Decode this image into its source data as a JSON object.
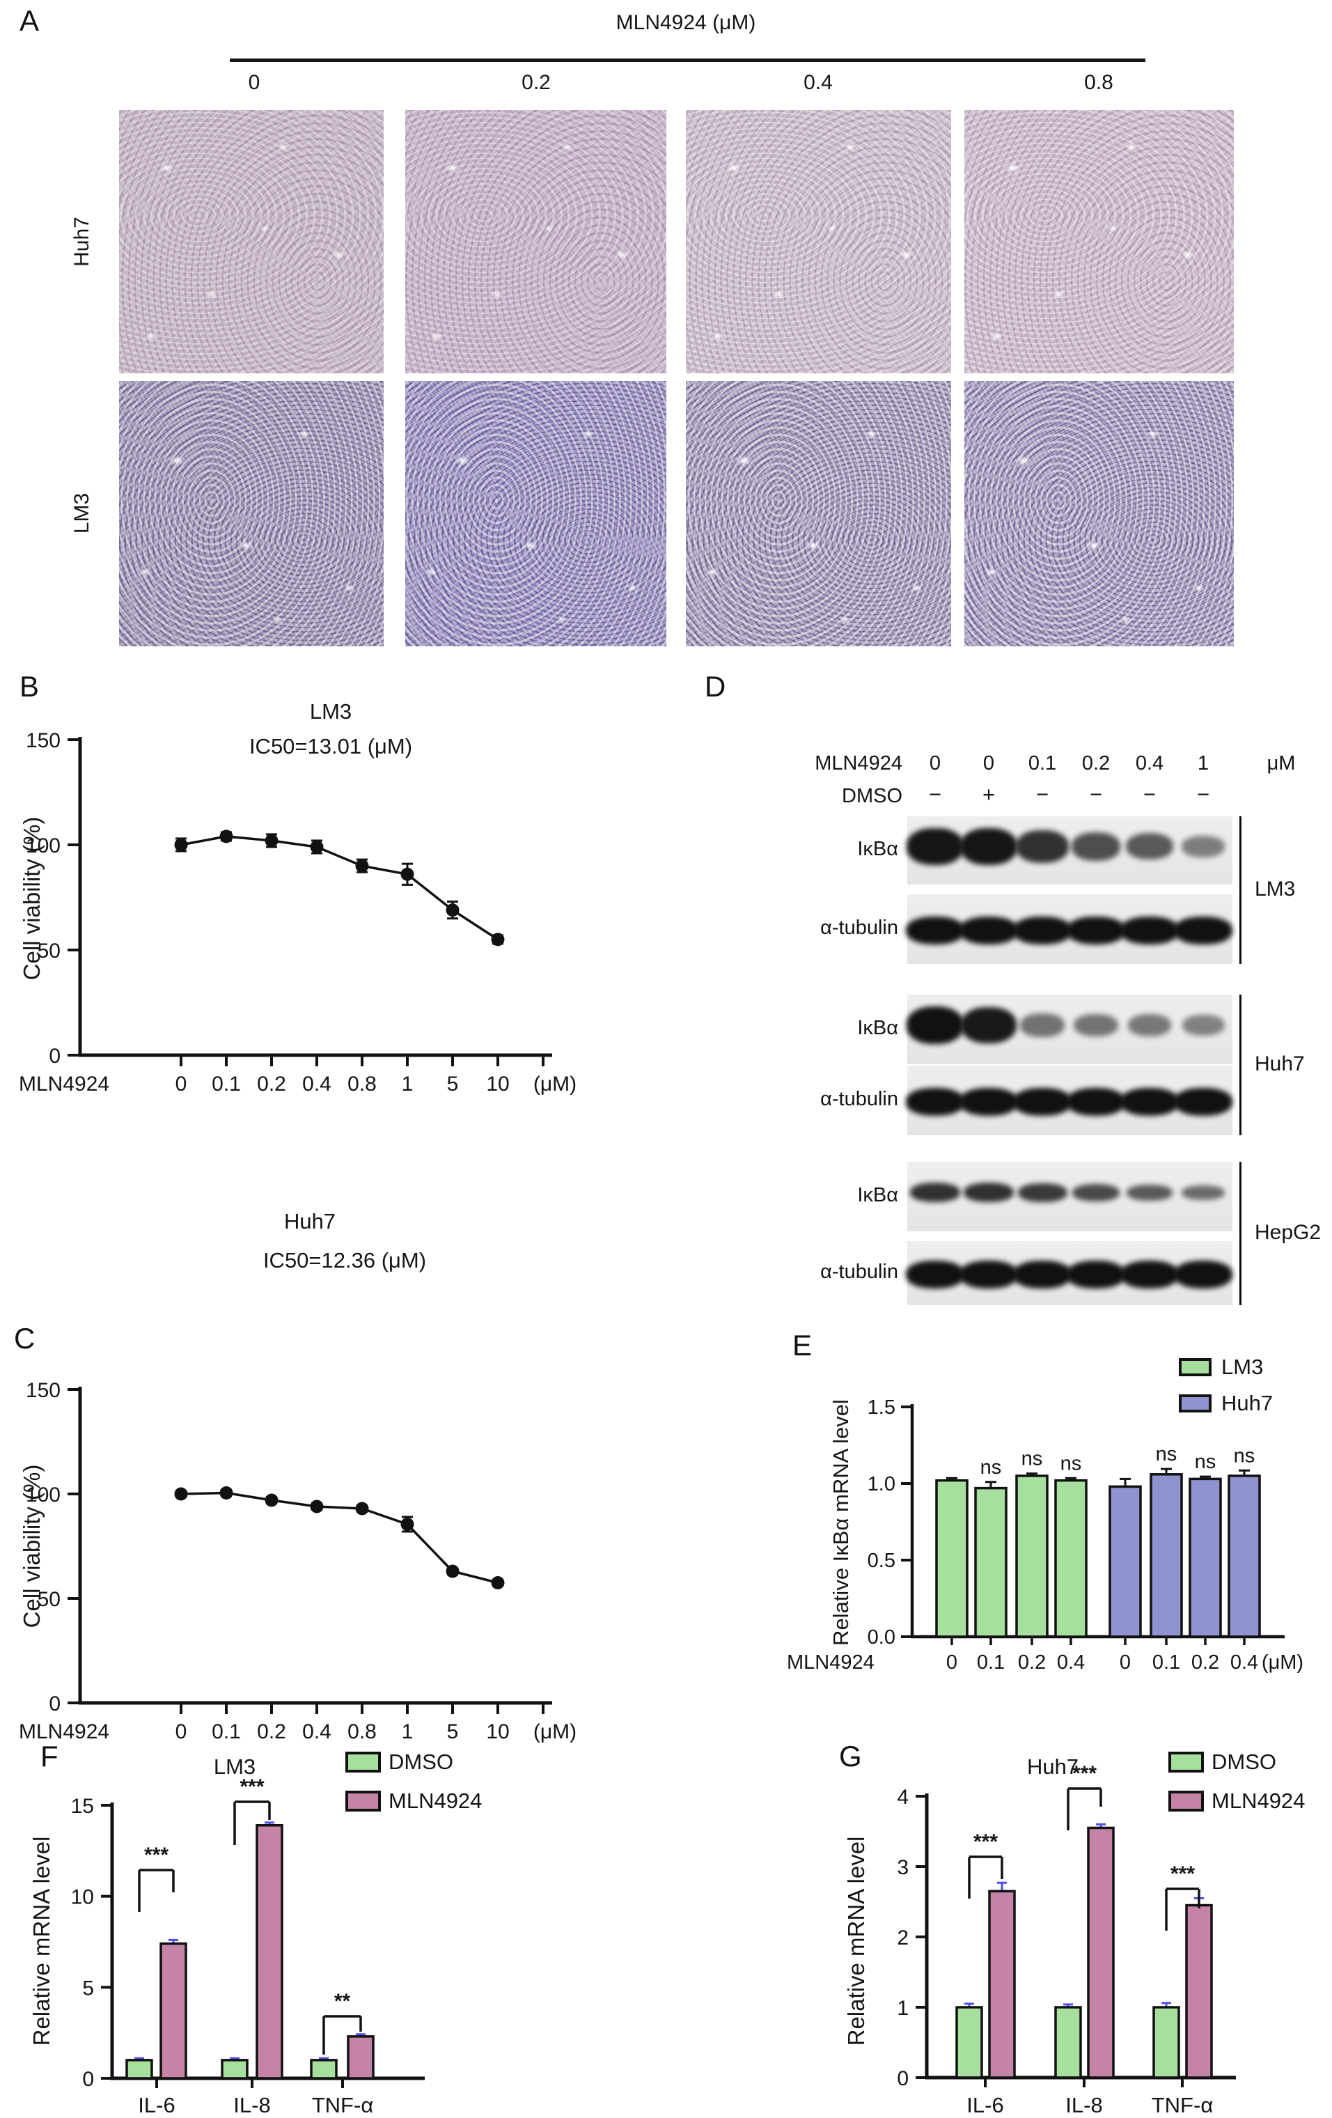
{
  "panels": {
    "A": {
      "label": "A",
      "title": "MLN4924 (μM)",
      "col_labels": [
        "0",
        "0.2",
        "0.4",
        "0.8"
      ],
      "row_labels": [
        "Huh7",
        "LM3"
      ]
    },
    "B": {
      "label": "B"
    },
    "C": {
      "label": "C"
    },
    "D": {
      "label": "D",
      "header_row": {
        "label": "MLN4924",
        "values": [
          "0",
          "0",
          "0.1",
          "0.2",
          "0.4",
          "1"
        ],
        "unit": "μM"
      },
      "dmso_row": {
        "label": "DMSO",
        "values": [
          "−",
          "+",
          "−",
          "−",
          "−",
          "−"
        ]
      },
      "groups": [
        {
          "cell_line": "LM3",
          "rows": [
            {
              "protein": "IκBα",
              "band_intensities": [
                0.97,
                0.97,
                0.8,
                0.62,
                0.55,
                0.33
              ]
            },
            {
              "protein": "α-tubulin",
              "band_intensities": [
                1,
                1,
                1,
                1,
                1,
                1
              ]
            }
          ]
        },
        {
          "cell_line": "Huh7",
          "rows": [
            {
              "protein": "IκBα",
              "band_intensities": [
                1,
                0.95,
                0.4,
                0.38,
                0.36,
                0.3
              ]
            },
            {
              "protein": "α-tubulin",
              "band_intensities": [
                1,
                1,
                1,
                1,
                1,
                1
              ]
            }
          ]
        },
        {
          "cell_line": "HepG2",
          "rows": [
            {
              "protein": "IκBα",
              "band_intensities": [
                0.8,
                0.8,
                0.75,
                0.65,
                0.55,
                0.45
              ]
            },
            {
              "protein": "α-tubulin",
              "band_intensities": [
                1,
                1,
                1,
                1,
                1,
                1
              ]
            }
          ]
        }
      ]
    },
    "E": {
      "label": "E"
    },
    "F": {
      "label": "F"
    },
    "G": {
      "label": "G"
    }
  },
  "chart_data": {
    "B": {
      "type": "line",
      "title": "LM3",
      "annotation": "IC50=13.01 (μM)",
      "ylabel": "Cell viability (%)",
      "ylim": [
        0,
        150
      ],
      "yticks": [
        {
          "v": 0,
          "label": "0"
        },
        {
          "v": 50,
          "label": "50"
        },
        {
          "v": 100,
          "label": "100"
        },
        {
          "v": 150,
          "label": "150"
        }
      ],
      "x_prefix": "MLN4924",
      "x_suffix": "(μM)",
      "categories": [
        "0",
        "0.1",
        "0.2",
        "0.4",
        "0.8",
        "1",
        "5",
        "10"
      ],
      "values": [
        100,
        104,
        102,
        99,
        90,
        86,
        69,
        55
      ],
      "errors": [
        3,
        2,
        3,
        3,
        3,
        5,
        4,
        2
      ]
    },
    "C": {
      "type": "line",
      "title": "Huh7",
      "annotation": "IC50=12.36 (μM)",
      "ylabel": "Cell viability (%)",
      "ylim": [
        0,
        150
      ],
      "yticks": [
        {
          "v": 0,
          "label": "0"
        },
        {
          "v": 50,
          "label": "50"
        },
        {
          "v": 100,
          "label": "100"
        },
        {
          "v": 150,
          "label": "150"
        }
      ],
      "x_prefix": "MLN4924",
      "x_suffix": "(μM)",
      "categories": [
        "0",
        "0.1",
        "0.2",
        "0.4",
        "0.8",
        "1",
        "5",
        "10"
      ],
      "values": [
        100,
        100.5,
        97,
        94,
        93,
        85.5,
        63,
        57.5
      ],
      "errors": [
        1.5,
        1.5,
        1.5,
        1.5,
        1.5,
        3.5,
        1.5,
        1.5
      ]
    },
    "E": {
      "type": "grouped-bar",
      "ylabel": "Relative IκBα mRNA level",
      "ylim": [
        0,
        1.5
      ],
      "yticks": [
        {
          "v": 0,
          "label": "0.0"
        },
        {
          "v": 0.5,
          "label": "0.5"
        },
        {
          "v": 1.0,
          "label": "1.0"
        },
        {
          "v": 1.5,
          "label": "1.5"
        }
      ],
      "x_prefix": "MLN4924",
      "x_suffix": "(μM)",
      "legend": [
        {
          "label": "LM3",
          "color": "#a7df9e"
        },
        {
          "label": "Huh7",
          "color": "#8f94d1"
        }
      ],
      "groups": [
        {
          "name": "LM3",
          "color": "#a7df9e",
          "tick_labels": [
            "0",
            "0.1",
            "0.2",
            "0.4"
          ],
          "values": [
            1.02,
            0.97,
            1.05,
            1.02
          ],
          "errors": [
            0.015,
            0.04,
            0.015,
            0.015
          ],
          "annotations": [
            "",
            "ns",
            "ns",
            "ns"
          ]
        },
        {
          "name": "Huh7",
          "color": "#8f94d1",
          "tick_labels": [
            "0",
            "0.1",
            "0.2",
            "0.4"
          ],
          "values": [
            0.98,
            1.06,
            1.03,
            1.05
          ],
          "errors": [
            0.05,
            0.035,
            0.015,
            0.035
          ],
          "annotations": [
            "",
            "ns",
            "ns",
            "ns"
          ]
        }
      ]
    },
    "F": {
      "type": "paired-bar",
      "title": "LM3",
      "ylabel": "Relative mRNA level",
      "ylim": [
        0,
        15
      ],
      "yticks": [
        {
          "v": 0,
          "label": "0"
        },
        {
          "v": 5,
          "label": "5"
        },
        {
          "v": 10,
          "label": "10"
        },
        {
          "v": 15,
          "label": "15"
        }
      ],
      "categories": [
        "IL-6",
        "IL-8",
        "TNF-α"
      ],
      "series": [
        {
          "name": "DMSO",
          "color": "#a7df9e",
          "values": [
            1,
            1,
            1
          ],
          "errors": [
            0.1,
            0.1,
            0.1
          ]
        },
        {
          "name": "MLN4924",
          "color": "#c583a7",
          "values": [
            7.4,
            13.9,
            2.3
          ],
          "errors": [
            0.2,
            0.15,
            0.12
          ]
        }
      ],
      "significance": [
        "***",
        "***",
        "**"
      ],
      "error_color": "#4d4df0"
    },
    "G": {
      "type": "paired-bar",
      "title": "Huh7",
      "ylabel": "Relative mRNA level",
      "ylim": [
        0,
        4
      ],
      "yticks": [
        {
          "v": 0,
          "label": "0"
        },
        {
          "v": 1,
          "label": "1"
        },
        {
          "v": 2,
          "label": "2"
        },
        {
          "v": 3,
          "label": "3"
        },
        {
          "v": 4,
          "label": "4"
        }
      ],
      "categories": [
        "IL-6",
        "IL-8",
        "TNF-α"
      ],
      "series": [
        {
          "name": "DMSO",
          "color": "#a7df9e",
          "values": [
            1,
            1,
            1
          ],
          "errors": [
            0.05,
            0.04,
            0.06
          ]
        },
        {
          "name": "MLN4924",
          "color": "#c583a7",
          "values": [
            2.65,
            3.55,
            2.45
          ],
          "errors": [
            0.12,
            0.05,
            0.1
          ]
        }
      ],
      "significance": [
        "***",
        "***",
        "***"
      ],
      "error_color": "#4d4df0"
    }
  }
}
